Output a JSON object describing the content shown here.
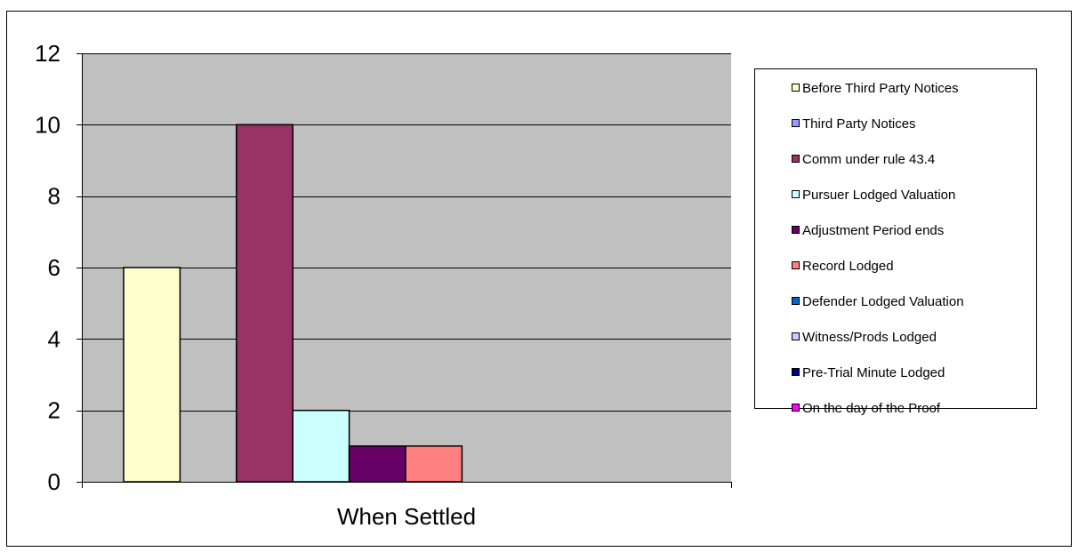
{
  "chart_data": {
    "type": "bar",
    "xlabel": "When Settled",
    "categories": [
      "When Settled"
    ],
    "ylim": [
      0,
      12
    ],
    "yticks": [
      0,
      2,
      4,
      6,
      8,
      10,
      12
    ],
    "grid": true,
    "legend_position": "right",
    "series": [
      {
        "name": "Before Third Party Notices",
        "values": [
          6
        ],
        "color": "#FFFFCC"
      },
      {
        "name": "Third Party Notices",
        "values": [
          0
        ],
        "color": "#9999FF"
      },
      {
        "name": "Comm under rule 43.4",
        "values": [
          10
        ],
        "color": "#993366"
      },
      {
        "name": "Pursuer Lodged Valuation",
        "values": [
          2
        ],
        "color": "#CCFFFF"
      },
      {
        "name": "Adjustment Period ends",
        "values": [
          1
        ],
        "color": "#660066"
      },
      {
        "name": "Record Lodged",
        "values": [
          1
        ],
        "color": "#FF8080"
      },
      {
        "name": "Defender Lodged Valuation",
        "values": [
          0
        ],
        "color": "#0066CC"
      },
      {
        "name": "Witness/Prods Lodged",
        "values": [
          0
        ],
        "color": "#CCCCFF"
      },
      {
        "name": "Pre-Trial Minute Lodged",
        "values": [
          0
        ],
        "color": "#000080"
      },
      {
        "name": "On the day of the Proof",
        "values": [
          0
        ],
        "color": "#FF00FF"
      }
    ]
  }
}
